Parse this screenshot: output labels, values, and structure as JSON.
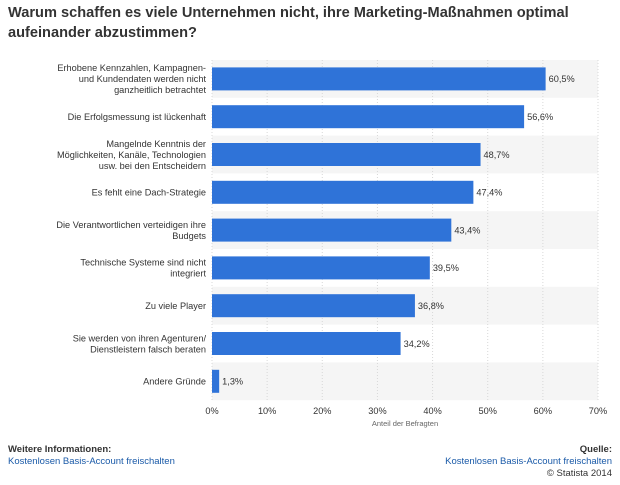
{
  "title": "Warum schaffen es viele Unternehmen nicht, ihre Marketing-Maßnahmen optimal aufeinander abzustimmen?",
  "footer": {
    "info_heading": "Weitere Informationen:",
    "info_link": "Kostenlosen Basis-Account freischalten",
    "source_heading": "Quelle:",
    "source_link": "Kostenlosen Basis-Account freischalten",
    "copyright": "© Statista 2014"
  },
  "colors": {
    "bar": "#2f73d8",
    "band": "#f5f5f5"
  },
  "chart_data": {
    "type": "bar",
    "orientation": "horizontal",
    "title": "Warum schaffen es viele Unternehmen nicht, ihre Marketing-Maßnahmen optimal aufeinander abzustimmen?",
    "xlabel": "Anteil der Befragten",
    "ylabel": "",
    "xlim": [
      0,
      70
    ],
    "x_ticks": [
      "0%",
      "10%",
      "20%",
      "30%",
      "40%",
      "50%",
      "60%",
      "70%"
    ],
    "grid": true,
    "categories": [
      [
        "Erhobene Kennzahlen, Kampagnen-",
        "und Kundendaten werden nicht",
        "ganzheitlich betrachtet"
      ],
      [
        "Die Erfolgsmessung ist lückenhaft"
      ],
      [
        "Mangelnde Kenntnis der",
        "Möglichkeiten, Kanäle, Technologien",
        "usw. bei den Entscheidern"
      ],
      [
        "Es fehlt eine Dach-Strategie"
      ],
      [
        "Die Verantwortlichen verteidigen ihre",
        "Budgets"
      ],
      [
        "Technische Systeme sind nicht",
        "integriert"
      ],
      [
        "Zu viele Player"
      ],
      [
        "Sie werden von ihren Agenturen/",
        "Dienstleistern falsch beraten"
      ],
      [
        "Andere Gründe"
      ]
    ],
    "values": [
      60.5,
      56.6,
      48.7,
      47.4,
      43.4,
      39.5,
      36.8,
      34.2,
      1.3
    ],
    "value_labels": [
      "60,5%",
      "56,6%",
      "48,7%",
      "47,4%",
      "43,4%",
      "39,5%",
      "36,8%",
      "34,2%",
      "1,3%"
    ]
  }
}
